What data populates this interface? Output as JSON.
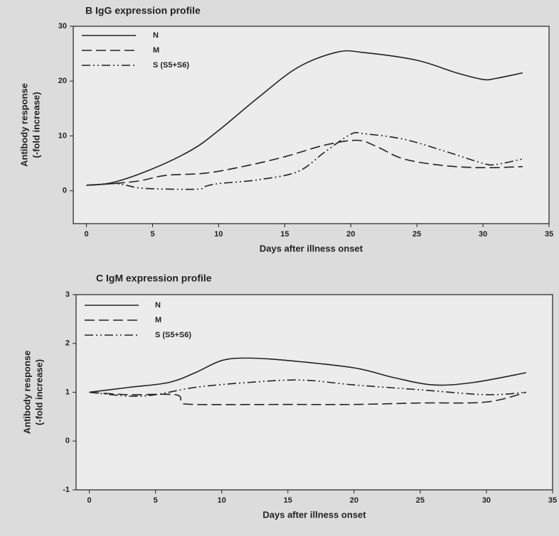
{
  "chart_data": [
    {
      "type": "line",
      "title": "B IgG expression profile",
      "xlabel": "Days after illness onset",
      "ylabel": [
        "Antibody response",
        "(-fold increase)"
      ],
      "xlim": [
        -1,
        35
      ],
      "xticks": [
        0,
        5,
        10,
        15,
        20,
        25,
        30,
        35
      ],
      "ylim": [
        -6,
        30
      ],
      "yticks": [
        0,
        10,
        20,
        30
      ],
      "series": [
        {
          "name": "N",
          "color": "#222222",
          "dash": "solid",
          "x": [
            0,
            2,
            5,
            8,
            10,
            13,
            16,
            19,
            21,
            25,
            28,
            30,
            31,
            33
          ],
          "values": [
            1,
            1.5,
            4,
            7.5,
            11,
            17,
            22.5,
            25.3,
            25.2,
            23.8,
            21.5,
            20.3,
            20.5,
            21.5
          ]
        },
        {
          "name": "M",
          "color": "#222222",
          "dash": "dashed",
          "x": [
            0,
            2,
            4,
            6,
            9,
            12,
            15,
            18,
            20.5,
            22,
            24,
            27,
            30,
            33
          ],
          "values": [
            1,
            1.3,
            1.8,
            2.8,
            3.2,
            4.5,
            6.2,
            8.3,
            9.2,
            8,
            5.8,
            4.6,
            4.2,
            4.4
          ]
        },
        {
          "name": "S (S5+S6)",
          "color": "#222222",
          "dash": "dashdot",
          "x": [
            0,
            2,
            3,
            4,
            6,
            8.5,
            9,
            10,
            13,
            16,
            18,
            20,
            21,
            24,
            27,
            30,
            31,
            33
          ],
          "values": [
            1,
            1.3,
            1,
            0.5,
            0.3,
            0.3,
            0.8,
            1.3,
            2,
            3.5,
            7,
            10.3,
            10.4,
            9.4,
            7.3,
            5,
            4.8,
            5.8
          ]
        }
      ]
    },
    {
      "type": "line",
      "title": "C IgM expression profile",
      "xlabel": "Days after illness onset",
      "ylabel": [
        "Antibody response",
        "(-fold increase)"
      ],
      "xlim": [
        -1,
        35
      ],
      "xticks": [
        0,
        5,
        10,
        15,
        20,
        25,
        30,
        35
      ],
      "ylim": [
        -1,
        3
      ],
      "yticks": [
        -1,
        0,
        1,
        2,
        3
      ],
      "series": [
        {
          "name": "N",
          "color": "#222222",
          "dash": "solid",
          "x": [
            0,
            3,
            6,
            8,
            10,
            12,
            15,
            20,
            23,
            26,
            29,
            33
          ],
          "values": [
            1,
            1.1,
            1.2,
            1.4,
            1.65,
            1.7,
            1.65,
            1.5,
            1.3,
            1.15,
            1.2,
            1.4
          ]
        },
        {
          "name": "M",
          "color": "#222222",
          "dash": "dashed",
          "x": [
            0,
            3,
            6.5,
            7,
            8,
            15,
            20,
            25,
            30,
            33
          ],
          "values": [
            1,
            0.95,
            0.95,
            0.8,
            0.75,
            0.75,
            0.75,
            0.78,
            0.8,
            1.0
          ]
        },
        {
          "name": "S (S5+S6)",
          "color": "#222222",
          "dash": "dashdot",
          "x": [
            0,
            3,
            5,
            8,
            12,
            16,
            20,
            25,
            30,
            33
          ],
          "values": [
            1,
            0.92,
            0.95,
            1.1,
            1.2,
            1.25,
            1.15,
            1.05,
            0.95,
            1.0
          ]
        }
      ]
    }
  ]
}
